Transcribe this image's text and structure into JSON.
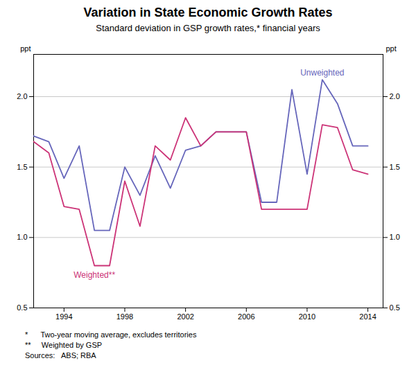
{
  "chart_data": {
    "type": "line",
    "title": "Variation in State Economic Growth Rates",
    "subtitle": "Standard deviation in GSP growth rates,* financial years",
    "footnotes": [
      "*      Two-year moving average, excludes territories",
      "**     Weighted by GSP",
      "Sources:   ABS; RBA"
    ],
    "ylabel": "ppt",
    "y2label": "ppt",
    "x": [
      1992,
      1993,
      1994,
      1995,
      1996,
      1997,
      1998,
      1999,
      2000,
      2001,
      2002,
      2003,
      2004,
      2005,
      2006,
      2007,
      2008,
      2009,
      2010,
      2011,
      2012,
      2013,
      2014
    ],
    "xlim": [
      1992,
      2015
    ],
    "xticks": [
      1994,
      1998,
      2002,
      2006,
      2010,
      2014
    ],
    "ylim": [
      0.5,
      2.3
    ],
    "yticks": [
      0.5,
      {
        "value": 1.0,
        "label": "1.0"
      },
      1.5,
      {
        "value": 2.0,
        "label": "2.0"
      }
    ],
    "y2lim": [
      0.5,
      2.3
    ],
    "y2ticks": [
      0.5,
      {
        "value": 1.0,
        "label": "1.0"
      },
      1.5,
      {
        "value": 2.0,
        "label": "2.0"
      }
    ],
    "grid": "y",
    "series": [
      {
        "name": "Unweighted",
        "color": "#6666BB",
        "values": [
          1.72,
          1.68,
          1.42,
          1.65,
          1.05,
          1.05,
          1.5,
          1.3,
          1.58,
          1.35,
          1.62,
          1.65,
          1.75,
          1.75,
          1.75,
          1.25,
          1.25,
          2.05,
          1.45,
          2.12,
          1.95,
          1.65,
          1.65
        ]
      },
      {
        "name": "Weighted**",
        "color": "#CC3377",
        "values": [
          1.68,
          1.6,
          1.22,
          1.2,
          0.8,
          0.8,
          1.4,
          1.08,
          1.65,
          1.55,
          1.85,
          1.65,
          1.75,
          1.75,
          1.75,
          1.2,
          1.2,
          1.2,
          1.2,
          1.8,
          1.78,
          1.48,
          1.45
        ]
      }
    ]
  }
}
